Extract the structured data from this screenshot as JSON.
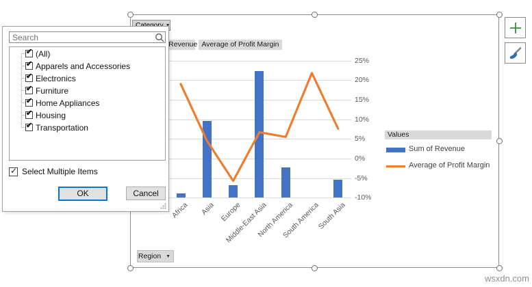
{
  "watermark": "wsxdn.com",
  "filter_popup": {
    "search_placeholder": "Search",
    "items": [
      "(All)",
      "Apparels and Accessories",
      "Electronics",
      "Furniture",
      "Home Appliances",
      "Housing",
      "Transportation"
    ],
    "all_items_checked": true,
    "select_multiple_label": "Select Multiple Items",
    "select_multiple_checked": true,
    "ok_label": "OK",
    "cancel_label": "Cancel"
  },
  "pivot_field_buttons": {
    "category_label": "Category",
    "region_label": "Region",
    "series_button_1": "Sum of Revenue",
    "series_button_2": "Average of Profit Margin"
  },
  "legend": {
    "header": "Values",
    "entries": [
      {
        "label": "Sum of Revenue",
        "swatch": "bar",
        "color": "#4472C4"
      },
      {
        "label": "Average of Profit Margin",
        "swatch": "line",
        "color": "#ED7D31"
      }
    ]
  },
  "side_buttons": [
    {
      "icon": "plus-icon"
    },
    {
      "icon": "paintbrush-icon"
    }
  ],
  "chart_data": {
    "type": "combo",
    "categories": [
      "Africa",
      "Asia",
      "Europe",
      "Middle-East Asia",
      "North America",
      "South America",
      "South Asia"
    ],
    "series": [
      {
        "name": "Sum of Revenue",
        "type": "bar",
        "color": "#4472C4",
        "axis": "primary (hidden behind filter pane)",
        "relative_heights": [
          0.03,
          0.56,
          0.09,
          0.92,
          0.22,
          0,
          0.13
        ]
      },
      {
        "name": "Average of Profit Margin",
        "type": "line",
        "color": "#ED7D31",
        "axis": "secondary",
        "values_pct": [
          19,
          4.5,
          -5.7,
          6.7,
          5.5,
          21.8,
          7.6
        ]
      }
    ],
    "secondary_axis": {
      "ticks_pct": [
        25,
        20,
        15,
        10,
        5,
        0,
        -5,
        -10
      ],
      "tick_labels": [
        "25%",
        "20%",
        "15%",
        "10%",
        "5%",
        "0%",
        "-5%",
        "-10%"
      ],
      "max": 25,
      "min": -10,
      "grid": true,
      "side": "right"
    },
    "legend_position": "right",
    "x_labels_rotated_45": true
  },
  "colors": {
    "bar": "#4472C4",
    "line": "#ED7D31",
    "grid": "#D9D9D9",
    "axis_text": "#595959",
    "field_button_bg": "#D9D9D9",
    "ok_button_border": "#0078D7",
    "plus_green": "#3E8E41",
    "brush_blue": "#2E75B6",
    "selection_frame": "#8C8C8C",
    "watermark": "#8F8F8F"
  }
}
